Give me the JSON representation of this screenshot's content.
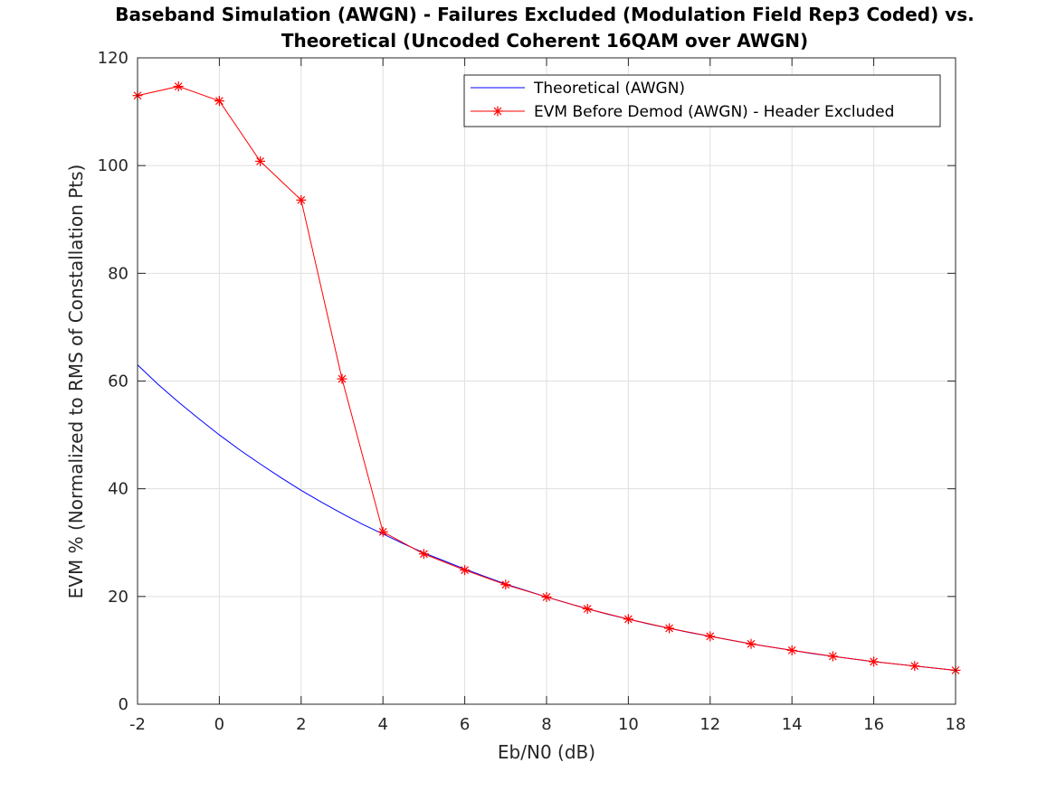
{
  "chart_data": {
    "type": "line",
    "title": "Baseband Simulation (AWGN) - Failures Excluded (Modulation Field Rep3 Coded) vs.",
    "subtitle": "Theoretical (Uncoded Coherent 16QAM over AWGN)",
    "xlabel": "Eb/N0 (dB)",
    "ylabel": "EVM % (Normalized to RMS of Constallation Pts)",
    "xlim": [
      -2,
      18
    ],
    "ylim": [
      0,
      120
    ],
    "xticks": [
      -2,
      0,
      2,
      4,
      6,
      8,
      10,
      12,
      14,
      16,
      18
    ],
    "yticks": [
      0,
      20,
      40,
      60,
      80,
      100,
      120
    ],
    "grid": true,
    "legend_position": "top-right",
    "series": [
      {
        "name": "Theoretical (AWGN)",
        "color": "#0000ff",
        "marker": "none",
        "x": [
          -2,
          -1.5,
          -1,
          -0.5,
          0,
          0.5,
          1,
          1.5,
          2,
          2.5,
          3,
          3.5,
          4,
          4.5,
          5,
          5.5,
          6,
          6.5,
          7,
          7.5,
          8,
          8.5,
          9,
          9.5,
          10,
          10.5,
          11,
          11.5,
          12,
          12.5,
          13,
          13.5,
          14,
          14.5,
          15,
          15.5,
          16,
          16.5,
          17,
          17.5,
          18
        ],
        "y": [
          63.0,
          59.4,
          56.1,
          53.0,
          50.0,
          47.2,
          44.6,
          42.1,
          39.7,
          37.5,
          35.4,
          33.4,
          31.6,
          29.8,
          28.1,
          26.6,
          25.1,
          23.7,
          22.3,
          21.1,
          19.9,
          18.8,
          17.7,
          16.7,
          15.8,
          14.9,
          14.1,
          13.3,
          12.6,
          11.9,
          11.2,
          10.6,
          10.0,
          9.4,
          8.9,
          8.4,
          7.9,
          7.5,
          7.1,
          6.7,
          6.3
        ]
      },
      {
        "name": "EVM Before Demod (AWGN) - Header Excluded",
        "color": "#ff0000",
        "marker": "asterisk",
        "x": [
          -2,
          -1,
          0,
          1,
          2,
          3,
          4,
          5,
          6,
          7,
          8,
          9,
          10,
          11,
          12,
          13,
          14,
          15,
          16,
          17,
          18
        ],
        "y": [
          113.0,
          114.7,
          112.0,
          100.8,
          93.6,
          60.4,
          32.0,
          27.9,
          24.9,
          22.2,
          19.9,
          17.7,
          15.8,
          14.1,
          12.6,
          11.2,
          10.0,
          8.9,
          7.9,
          7.1,
          6.3
        ]
      }
    ]
  }
}
